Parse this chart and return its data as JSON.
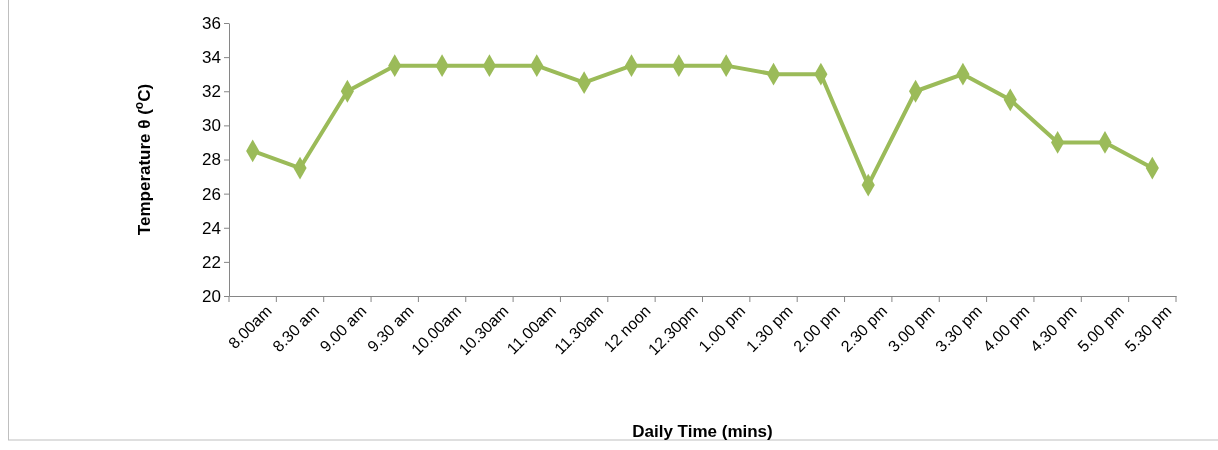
{
  "chart_data": {
    "type": "line",
    "xlabel": "Daily Time (mins)",
    "ylabel": "Temperature θ ($^{o}$C)",
    "categories": [
      "8.00am",
      "8.30 am",
      "9.00 am",
      "9.30 am",
      "10.00am",
      "10.30am",
      "11.00am",
      "11.30am",
      "12 noon",
      "12.30pm",
      "1.00 pm",
      "1.30 pm",
      "2.00 pm",
      "2.30 pm",
      "3.00 pm",
      "3.30 pm",
      "4.00 pm",
      "4.30 pm",
      "5.00 pm",
      "5.30 pm"
    ],
    "series": [
      {
        "color": "#9bbb59",
        "values": [
          28.5,
          27.5,
          32,
          33.5,
          33.5,
          33.5,
          33.5,
          32.5,
          33.5,
          33.5,
          33.5,
          33,
          33,
          26.5,
          32,
          33,
          31.5,
          29,
          29,
          27.5
        ]
      }
    ],
    "ylim": [
      20,
      36
    ],
    "yticks": [
      20,
      22,
      24,
      26,
      28,
      30,
      32,
      34,
      36
    ],
    "grid": false,
    "marker": "diamond",
    "line_style": "solid"
  }
}
